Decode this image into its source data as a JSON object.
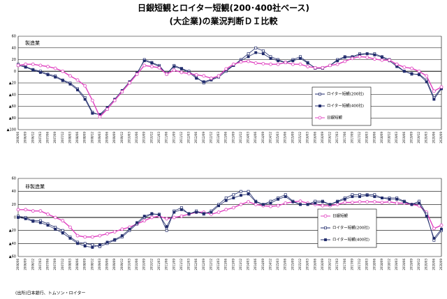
{
  "title": "日銀短観とロイター短観(200･400社ベース)",
  "subtitle": "(大企業)の業況判断ＤＩ比較",
  "source": "(出所)日本銀行、トムソン・ロイター",
  "chart_data": [
    {
      "type": "line",
      "title": "製造業",
      "grid": true,
      "legend": "lower right",
      "categories": [
        "2006/06",
        "2006/09",
        "2006/12",
        "2007/03",
        "2007/06",
        "2007/09",
        "2007/12",
        "2008/03",
        "2008/06",
        "2008/09",
        "2008/12",
        "2009/03",
        "2009/06",
        "2009/09",
        "2009/12",
        "2010/03",
        "2010/06",
        "2010/09",
        "2010/12",
        "2011/03",
        "2011/06",
        "2011/09",
        "2011/12",
        "2012/03",
        "2012/06",
        "2012/09",
        "2012/12",
        "2013/03",
        "2013/06",
        "2013/09",
        "2013/12",
        "2014/03",
        "2014/06",
        "2014/09",
        "2014/12",
        "2015/03",
        "2015/06",
        "2015/09",
        "2015/12",
        "2016/03",
        "2016/06",
        "2016/09",
        "2016/12",
        "2017/03",
        "2017/06",
        "2017/09",
        "2017/12",
        "2018/03",
        "2018/06",
        "2018/09",
        "2018/12",
        "2019/03",
        "2019/06",
        "2019/09",
        "2019/12",
        "2020/03",
        "2020/06",
        "2020/09"
      ],
      "ylim": [
        -100,
        60
      ],
      "yticks": [
        60,
        40,
        20,
        0,
        {
          "value": -20,
          "label": "▲20"
        },
        {
          "value": -40,
          "label": "▲40"
        },
        {
          "value": -60,
          "label": "▲60"
        },
        {
          "value": -80,
          "label": "▲80"
        },
        {
          "value": -100,
          "label": "▲100"
        }
      ],
      "series": [
        {
          "name": "ロイター短観(200社)",
          "color": "#1f2a6b",
          "marker": "open-square",
          "values": [
            12,
            8,
            3,
            0,
            -5,
            -8,
            -15,
            -20,
            -30,
            -45,
            -70,
            -75,
            -65,
            -50,
            -35,
            -20,
            -5,
            20,
            15,
            10,
            -5,
            10,
            5,
            0,
            -10,
            -20,
            -15,
            -10,
            0,
            10,
            20,
            30,
            40,
            35,
            25,
            20,
            15,
            20,
            25,
            15,
            5,
            5,
            10,
            20,
            25,
            25,
            30,
            30,
            30,
            25,
            20,
            10,
            0,
            -5,
            -5,
            -15,
            -45,
            -28
          ]
        },
        {
          "name": "ロイター短観(400社)",
          "color": "#1f2a6b",
          "marker": "filled-square",
          "values": [
            10,
            7,
            2,
            -2,
            -6,
            -10,
            -16,
            -22,
            -32,
            -48,
            -72,
            -74,
            -62,
            -48,
            -33,
            -18,
            -3,
            18,
            14,
            8,
            -4,
            8,
            4,
            -2,
            -12,
            -18,
            -14,
            -8,
            2,
            10,
            18,
            25,
            32,
            30,
            22,
            18,
            15,
            18,
            22,
            14,
            6,
            6,
            10,
            18,
            24,
            24,
            28,
            30,
            28,
            24,
            18,
            8,
            0,
            -4,
            -6,
            -18,
            -48,
            -30
          ]
        },
        {
          "name": "日銀短観",
          "color": "#e040c0",
          "marker": "open-circle",
          "values": [
            10,
            12,
            12,
            10,
            8,
            5,
            0,
            -8,
            -15,
            -25,
            -50,
            -78,
            -65,
            -50,
            -35,
            -20,
            -5,
            10,
            8,
            6,
            -5,
            2,
            -2,
            -4,
            -6,
            -8,
            -12,
            -8,
            4,
            12,
            16,
            17,
            14,
            13,
            12,
            12,
            15,
            12,
            12,
            8,
            6,
            6,
            10,
            12,
            17,
            22,
            25,
            24,
            21,
            19,
            19,
            12,
            7,
            5,
            0,
            -8,
            -34,
            -27
          ]
        }
      ]
    },
    {
      "type": "line",
      "title": "非製造業",
      "grid": true,
      "legend": "lower right",
      "categories": [
        "2006/06",
        "2006/09",
        "2006/12",
        "2007/03",
        "2007/06",
        "2007/09",
        "2007/12",
        "2008/03",
        "2008/06",
        "2008/09",
        "2008/12",
        "2009/03",
        "2009/06",
        "2009/09",
        "2009/12",
        "2010/03",
        "2010/06",
        "2010/09",
        "2010/12",
        "2011/03",
        "2011/06",
        "2011/09",
        "2011/12",
        "2012/03",
        "2012/06",
        "2012/09",
        "2012/12",
        "2013/03",
        "2013/06",
        "2013/09",
        "2013/12",
        "2014/03",
        "2014/06",
        "2014/09",
        "2014/12",
        "2015/03",
        "2015/06",
        "2015/09",
        "2015/12",
        "2016/03",
        "2016/06",
        "2016/09",
        "2016/12",
        "2017/03",
        "2017/06",
        "2017/09",
        "2017/12",
        "2018/03",
        "2018/06",
        "2018/09",
        "2018/12",
        "2019/03",
        "2019/06",
        "2019/09",
        "2019/12",
        "2020/03",
        "2020/06",
        "2020/09"
      ],
      "ylim": [
        -60,
        60
      ],
      "yticks": [
        60,
        40,
        20,
        0,
        {
          "value": -20,
          "label": "▲20"
        },
        {
          "value": -40,
          "label": "▲40"
        },
        {
          "value": -60,
          "label": "▲60"
        }
      ],
      "series": [
        {
          "name": "日銀短観",
          "color": "#e040c0",
          "marker": "open-circle",
          "values": [
            12,
            12,
            10,
            10,
            5,
            0,
            -5,
            -15,
            -28,
            -30,
            -30,
            -28,
            -25,
            -22,
            -18,
            -15,
            -10,
            -5,
            0,
            2,
            -2,
            0,
            2,
            5,
            8,
            8,
            5,
            8,
            12,
            15,
            20,
            24,
            20,
            18,
            17,
            18,
            22,
            24,
            25,
            22,
            20,
            18,
            18,
            20,
            23,
            23,
            24,
            24,
            24,
            23,
            24,
            22,
            22,
            20,
            18,
            8,
            -17,
            -12
          ]
        },
        {
          "name": "ロイター短観(200社)",
          "color": "#1f2a6b",
          "marker": "open-square",
          "values": [
            2,
            0,
            -5,
            -5,
            -10,
            -15,
            -20,
            -30,
            -38,
            -40,
            -42,
            -45,
            -40,
            -35,
            -30,
            -20,
            -10,
            0,
            5,
            5,
            -20,
            10,
            15,
            5,
            10,
            5,
            10,
            20,
            30,
            35,
            40,
            40,
            25,
            20,
            25,
            30,
            35,
            25,
            20,
            20,
            25,
            25,
            20,
            25,
            30,
            35,
            35,
            35,
            35,
            30,
            30,
            30,
            25,
            20,
            25,
            5,
            -35,
            -20
          ]
        },
        {
          "name": "ロイター短観(400社)",
          "color": "#1f2a6b",
          "marker": "filled-square",
          "values": [
            0,
            -2,
            -6,
            -8,
            -12,
            -18,
            -24,
            -32,
            -40,
            -44,
            -46,
            -42,
            -38,
            -34,
            -28,
            -18,
            -8,
            2,
            6,
            4,
            -14,
            8,
            12,
            6,
            8,
            6,
            8,
            18,
            26,
            30,
            34,
            36,
            24,
            20,
            22,
            28,
            32,
            24,
            20,
            20,
            22,
            24,
            20,
            24,
            28,
            32,
            32,
            34,
            32,
            30,
            28,
            28,
            24,
            20,
            22,
            2,
            -32,
            -18
          ]
        }
      ]
    }
  ]
}
